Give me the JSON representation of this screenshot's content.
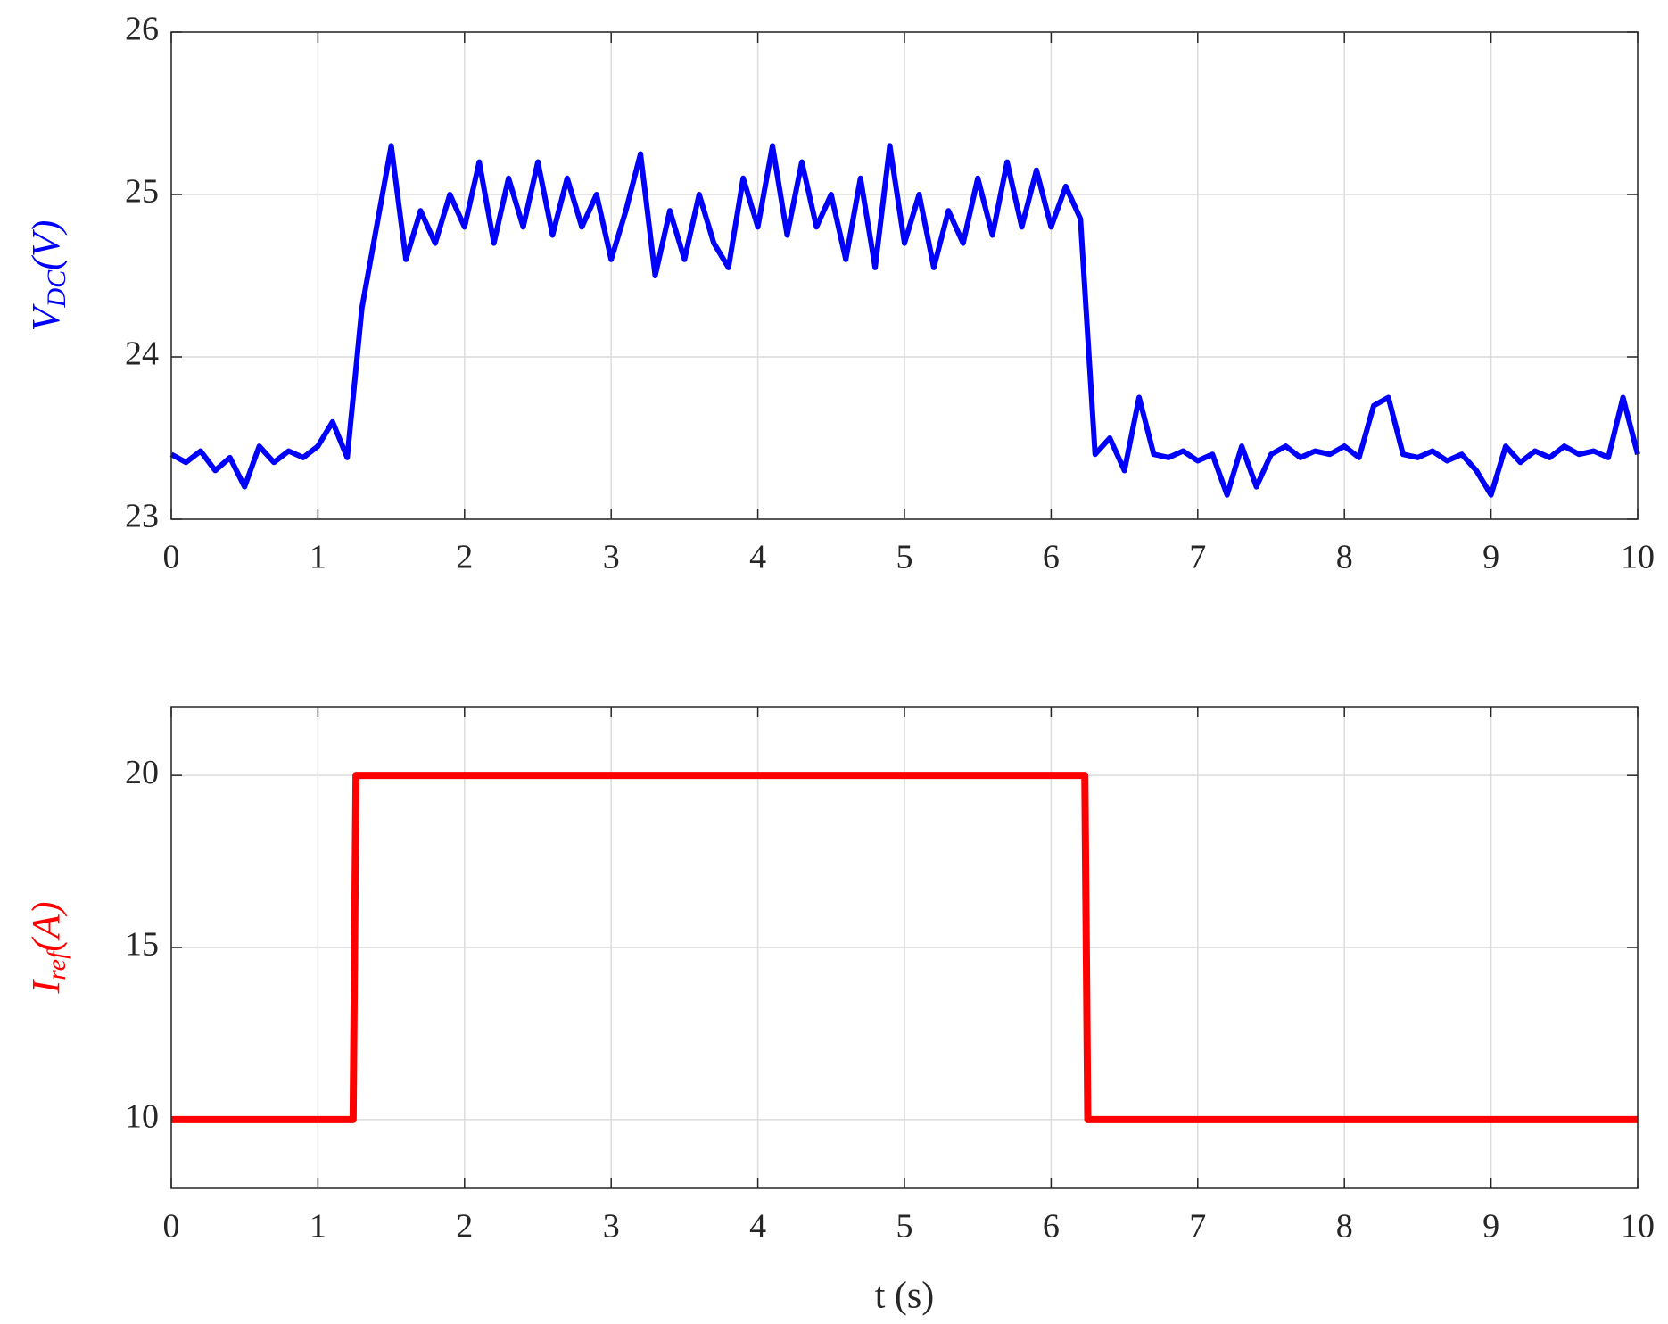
{
  "chart_data": [
    {
      "type": "line",
      "color": "#0000ff",
      "ylabel": {
        "main": "V",
        "sub": "DC",
        "rest": "(V)"
      },
      "x": [
        0,
        0.1,
        0.2,
        0.3,
        0.4,
        0.5,
        0.6,
        0.7,
        0.8,
        0.9,
        1.0,
        1.1,
        1.2,
        1.3,
        1.4,
        1.5,
        1.6,
        1.7,
        1.8,
        1.9,
        2.0,
        2.1,
        2.2,
        2.3,
        2.4,
        2.5,
        2.6,
        2.7,
        2.8,
        2.9,
        3.0,
        3.1,
        3.2,
        3.3,
        3.4,
        3.5,
        3.6,
        3.7,
        3.8,
        3.9,
        4.0,
        4.1,
        4.2,
        4.3,
        4.4,
        4.5,
        4.6,
        4.7,
        4.8,
        4.9,
        5.0,
        5.1,
        5.2,
        5.3,
        5.4,
        5.5,
        5.6,
        5.7,
        5.8,
        5.9,
        6.0,
        6.1,
        6.2,
        6.3,
        6.4,
        6.5,
        6.6,
        6.7,
        6.8,
        6.9,
        7.0,
        7.1,
        7.2,
        7.3,
        7.4,
        7.5,
        7.6,
        7.7,
        7.8,
        7.9,
        8.0,
        8.1,
        8.2,
        8.3,
        8.4,
        8.5,
        8.6,
        8.7,
        8.8,
        8.9,
        9.0,
        9.1,
        9.2,
        9.3,
        9.4,
        9.5,
        9.6,
        9.7,
        9.8,
        9.9,
        10.0
      ],
      "values": [
        23.4,
        23.35,
        23.42,
        23.3,
        23.38,
        23.2,
        23.45,
        23.35,
        23.42,
        23.38,
        23.45,
        23.6,
        23.38,
        24.3,
        24.8,
        25.3,
        24.6,
        24.9,
        24.7,
        25.0,
        24.8,
        25.2,
        24.7,
        25.1,
        24.8,
        25.2,
        24.75,
        25.1,
        24.8,
        25.0,
        24.6,
        24.9,
        25.25,
        24.5,
        24.9,
        24.6,
        25.0,
        24.7,
        24.55,
        25.1,
        24.8,
        25.3,
        24.75,
        25.2,
        24.8,
        25.0,
        24.6,
        25.1,
        24.55,
        25.3,
        24.7,
        25.0,
        24.55,
        24.9,
        24.7,
        25.1,
        24.75,
        25.2,
        24.8,
        25.15,
        24.8,
        25.05,
        24.85,
        23.4,
        23.5,
        23.3,
        23.75,
        23.4,
        23.38,
        23.42,
        23.36,
        23.4,
        23.15,
        23.45,
        23.2,
        23.4,
        23.45,
        23.38,
        23.42,
        23.4,
        23.45,
        23.38,
        23.7,
        23.75,
        23.4,
        23.38,
        23.42,
        23.36,
        23.4,
        23.3,
        23.15,
        23.45,
        23.35,
        23.42,
        23.38,
        23.45,
        23.4,
        23.42,
        23.38,
        23.75,
        23.4
      ],
      "xlim": [
        0,
        10
      ],
      "xticks": [
        0,
        1,
        2,
        3,
        4,
        5,
        6,
        7,
        8,
        9,
        10
      ],
      "ylim": [
        23,
        26
      ],
      "yticks": [
        23,
        24,
        25,
        26
      ],
      "grid": true
    },
    {
      "type": "line",
      "color": "#ff0000",
      "ylabel": {
        "main": "I",
        "sub": "ref",
        "rest": "(A)"
      },
      "xlabel": "t (s)",
      "x": [
        0,
        1.24,
        1.26,
        6.23,
        6.25,
        10
      ],
      "values": [
        10,
        10,
        20,
        20,
        10,
        10
      ],
      "xlim": [
        0,
        10
      ],
      "xticks": [
        0,
        1,
        2,
        3,
        4,
        5,
        6,
        7,
        8,
        9,
        10
      ],
      "ylim": [
        8,
        22
      ],
      "yticks": [
        10,
        15,
        20
      ],
      "grid": true
    }
  ]
}
